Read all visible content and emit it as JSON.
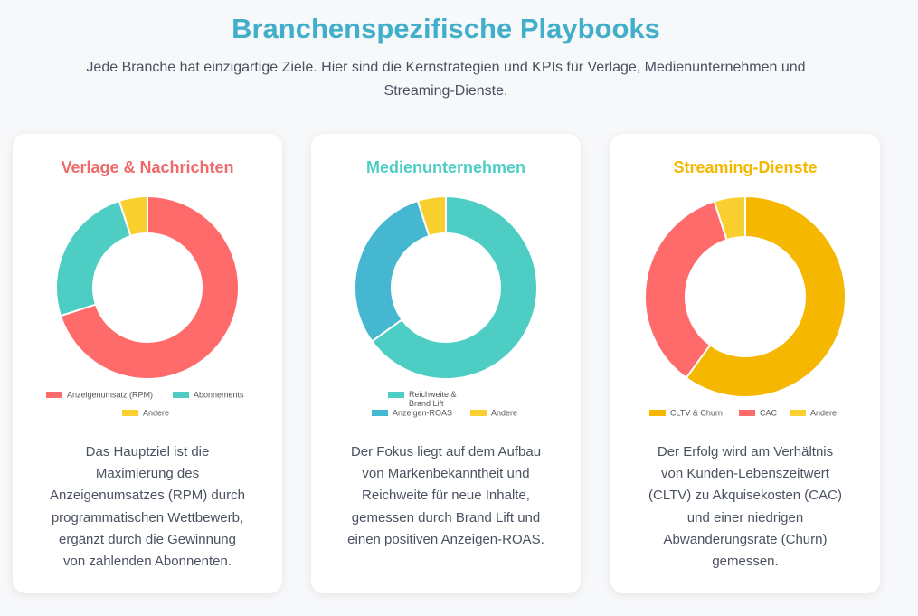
{
  "header": {
    "title": "Branchenspezifische Playbooks",
    "subtitle_lines": [
      "Jede Branche hat einzigartige Ziele. Hier sind die Kernstrategien und KPIs für Verlage, Medienunternehmen und",
      "Streaming-Dienste."
    ]
  },
  "cards": [
    {
      "title": "Verlage & Nachrichten",
      "title_color": "#f06a6a",
      "description_lines": [
        "Das Hauptziel ist die",
        "Maximierung des",
        "Anzeigenumsatzes (RPM) durch",
        "programmatischen Wettbewerb,",
        "ergänzt durch die Gewinnung",
        "von zahlenden Abonnenten."
      ]
    },
    {
      "title": "Medienunternehmen",
      "title_color": "#4ecdc4",
      "description_lines": [
        "Der Fokus liegt auf dem Aufbau",
        "von Markenbekanntheit und",
        "Reichweite für neue Inhalte,",
        "gemessen durch Brand Lift und",
        "einen positiven Anzeigen-ROAS."
      ]
    },
    {
      "title": "Streaming-Dienste",
      "title_color": "#f5b700",
      "description_lines": [
        "Der Erfolg wird am Verhältnis",
        "von Kunden-Lebenszeitwert",
        "(CLTV) zu Akquisekosten (CAC)",
        "und einer niedrigen",
        "Abwanderungsrate (Churn)",
        "gemessen."
      ]
    }
  ],
  "chart_data": [
    {
      "type": "pie",
      "categories": [
        "Anzeigenumsatz (RPM)",
        "Abonnements",
        "Andere"
      ],
      "values": [
        70,
        25,
        5
      ],
      "colors": [
        "#ff6b6b",
        "#4ecdc4",
        "#f9d030"
      ],
      "legend": "bottom"
    },
    {
      "type": "pie",
      "categories": [
        "Reichweite & Brand Lift",
        "Anzeigen-ROAS",
        "Andere"
      ],
      "values": [
        65,
        30,
        5
      ],
      "colors": [
        "#4ecdc4",
        "#45b7d1",
        "#f9d030"
      ],
      "legend": "bottom"
    },
    {
      "type": "pie",
      "categories": [
        "CLTV & Churn",
        "CAC",
        "Andere"
      ],
      "values": [
        60,
        35,
        5
      ],
      "colors": [
        "#f5b700",
        "#ff6b6b",
        "#f9d030"
      ],
      "legend": "bottom"
    }
  ]
}
